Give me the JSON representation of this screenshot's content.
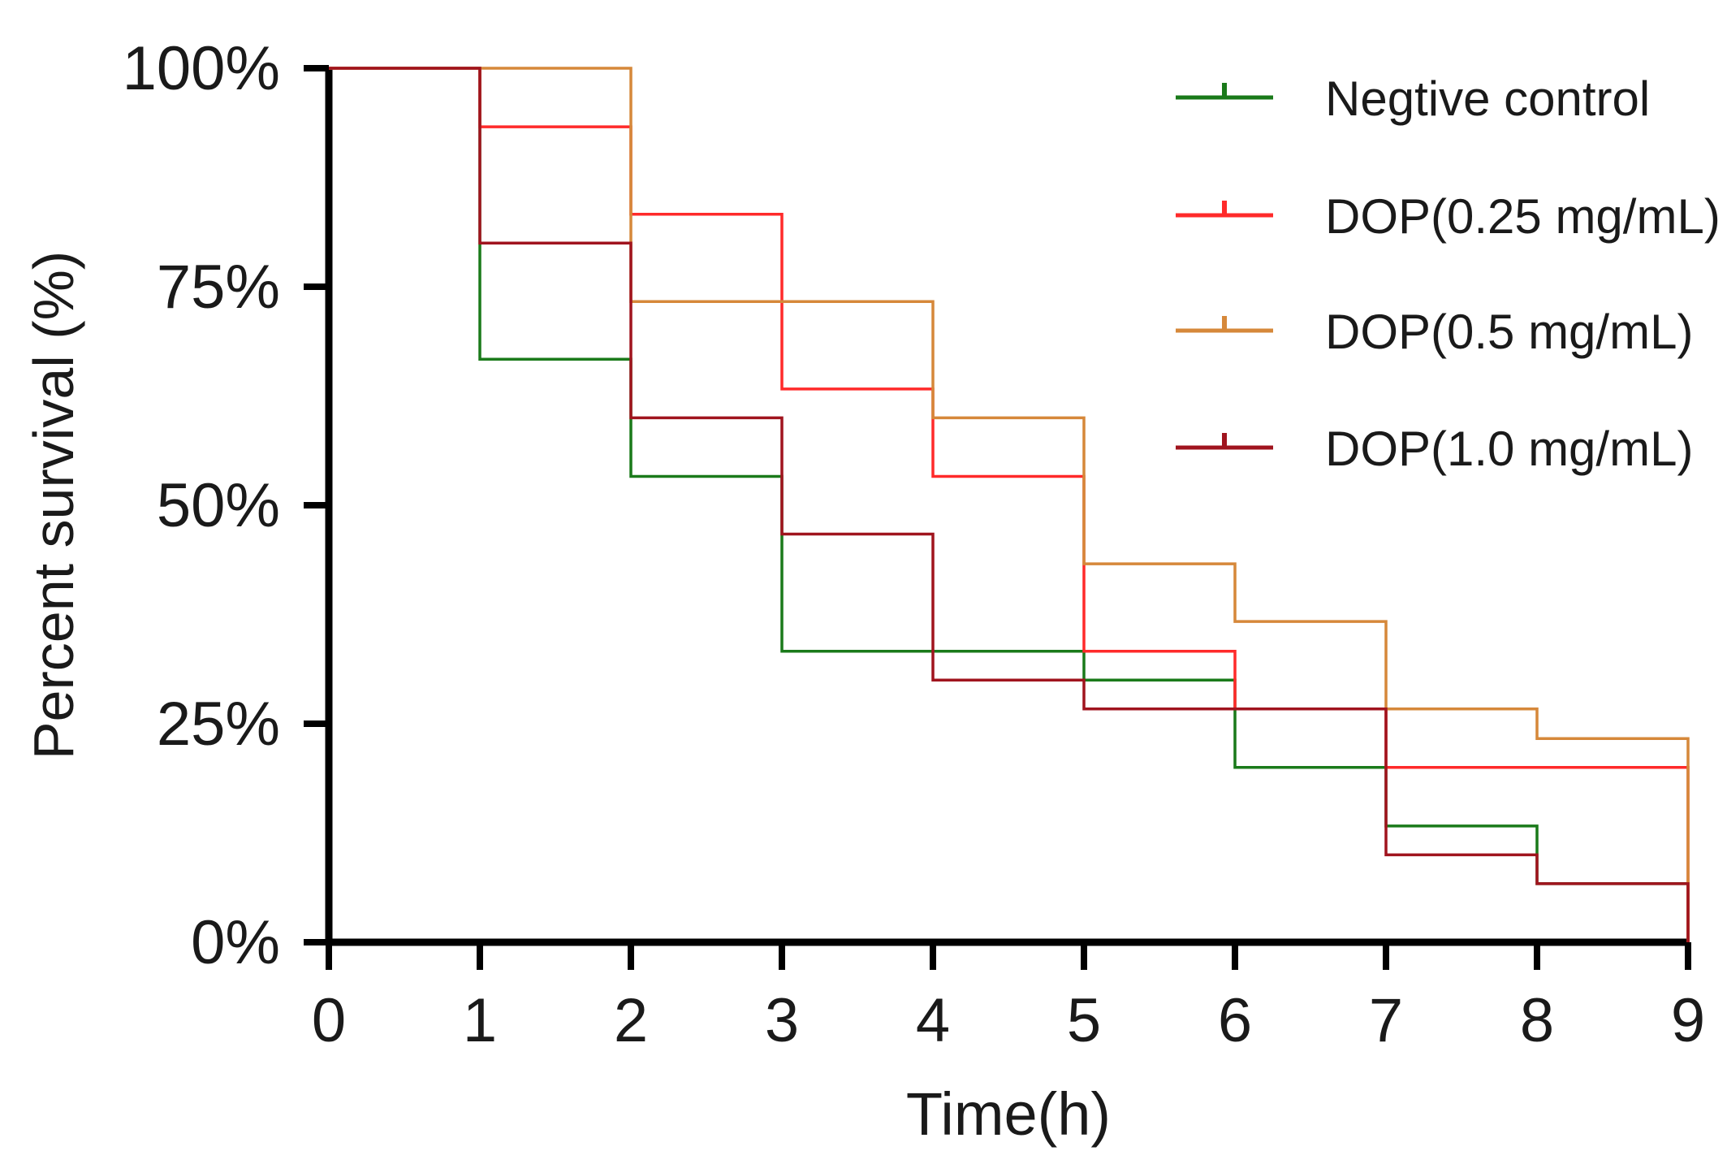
{
  "chart_data": {
    "type": "line",
    "subtype": "kaplan-meier-step",
    "title": "",
    "xlabel": "Time(h)",
    "ylabel": "Percent survival (%)",
    "xlim": [
      0,
      9
    ],
    "ylim": [
      0,
      100
    ],
    "x_ticks": [
      0,
      1,
      2,
      3,
      4,
      5,
      6,
      7,
      8,
      9
    ],
    "x_tick_labels": [
      "0",
      "1",
      "2",
      "3",
      "4",
      "5",
      "6",
      "7",
      "8",
      "9"
    ],
    "y_ticks": [
      0,
      25,
      50,
      75,
      100
    ],
    "y_tick_labels": [
      "0%",
      "25%",
      "50%",
      "75%",
      "100%"
    ],
    "grid": false,
    "legend_position": "top-right",
    "series": [
      {
        "name": "Negtive control",
        "color": "#1a7a1a",
        "x": [
          0,
          1,
          2,
          3,
          4,
          5,
          6,
          7,
          8,
          9
        ],
        "values": [
          100,
          66.7,
          53.3,
          33.3,
          33.3,
          30.0,
          20.0,
          13.3,
          6.7,
          0
        ]
      },
      {
        "name": "DOP(0.25 mg/mL)",
        "color": "#ff2a2a",
        "x": [
          0,
          1,
          2,
          3,
          4,
          5,
          6,
          7,
          8,
          9
        ],
        "values": [
          100,
          93.3,
          83.3,
          63.3,
          53.3,
          33.3,
          26.7,
          20.0,
          20.0,
          0
        ]
      },
      {
        "name": "DOP(0.5 mg/mL)",
        "color": "#d6883a",
        "x": [
          0,
          1,
          2,
          3,
          4,
          5,
          6,
          7,
          8,
          9
        ],
        "values": [
          100,
          100,
          73.3,
          73.3,
          60.0,
          43.3,
          36.7,
          26.7,
          23.3,
          0
        ]
      },
      {
        "name": "DOP(1.0 mg/mL)",
        "color": "#a0141e",
        "x": [
          0,
          1,
          2,
          3,
          4,
          5,
          6,
          7,
          8,
          9
        ],
        "values": [
          100,
          80.0,
          60.0,
          46.7,
          30.0,
          26.7,
          26.7,
          10.0,
          6.7,
          0
        ]
      }
    ]
  }
}
